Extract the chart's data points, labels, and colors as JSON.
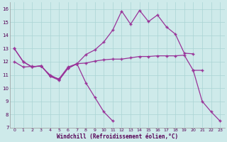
{
  "xlabel": "Windchill (Refroidissement éolien,°C)",
  "bg_color": "#ceeaea",
  "line_color": "#993399",
  "grid_color": "#aad4d4",
  "x_values": [
    0,
    1,
    2,
    3,
    4,
    5,
    6,
    7,
    8,
    9,
    10,
    11,
    12,
    13,
    14,
    15,
    16,
    17,
    18,
    19,
    20,
    21,
    22,
    23
  ],
  "series": {
    "line_top": [
      13.0,
      12.0,
      11.6,
      11.7,
      10.9,
      10.7,
      11.6,
      11.85,
      12.55,
      12.9,
      13.5,
      14.4,
      15.85,
      14.85,
      15.9,
      15.05,
      15.55,
      14.65,
      14.1,
      12.65,
      12.6,
      null,
      null,
      null
    ],
    "line_mid": [
      12.0,
      11.6,
      11.65,
      11.65,
      11.0,
      10.65,
      11.5,
      11.85,
      11.9,
      12.05,
      12.15,
      12.2,
      12.2,
      12.3,
      12.4,
      12.4,
      12.45,
      12.45,
      12.45,
      12.5,
      11.35,
      11.35,
      null,
      null
    ],
    "line_bot": [
      13.0,
      12.0,
      11.6,
      11.7,
      10.9,
      10.6,
      11.5,
      11.85,
      10.4,
      9.3,
      8.2,
      7.5,
      null,
      null,
      null,
      null,
      null,
      null,
      null,
      null,
      11.35,
      9.0,
      8.2,
      7.5
    ]
  },
  "ylim": [
    7,
    16.5
  ],
  "xlim": [
    -0.5,
    23.5
  ],
  "yticks": [
    7,
    8,
    9,
    10,
    11,
    12,
    13,
    14,
    15,
    16
  ],
  "xticks": [
    0,
    1,
    2,
    3,
    4,
    5,
    6,
    7,
    8,
    9,
    10,
    11,
    12,
    13,
    14,
    15,
    16,
    17,
    18,
    19,
    20,
    21,
    22,
    23
  ]
}
